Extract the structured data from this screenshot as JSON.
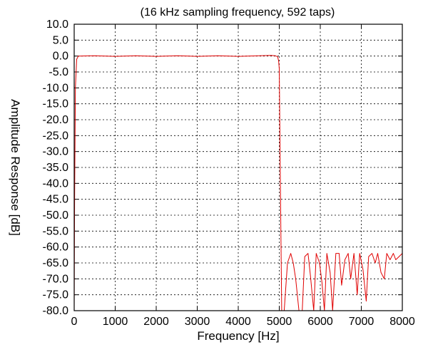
{
  "chart_data": {
    "type": "line",
    "title": "(16 kHz sampling frequency, 592 taps)",
    "xlabel": "Frequency [Hz]",
    "ylabel": "Amplitude Response [dB]",
    "xlim": [
      0,
      8000
    ],
    "ylim": [
      -80,
      10
    ],
    "xticks": [
      0,
      1000,
      2000,
      3000,
      4000,
      5000,
      6000,
      7000,
      8000
    ],
    "yticks": [
      10,
      5,
      0,
      -5,
      -10,
      -15,
      -20,
      -25,
      -30,
      -35,
      -40,
      -45,
      -50,
      -55,
      -60,
      -65,
      -70,
      -75,
      -80
    ],
    "xtick_labels": [
      "0",
      "1000",
      "2000",
      "3000",
      "4000",
      "5000",
      "6000",
      "7000",
      "8000"
    ],
    "ytick_labels": [
      "10.0",
      "5.0",
      "0.0",
      "-5.0",
      "-10.0",
      "-15.0",
      "-20.0",
      "-25.0",
      "-30.0",
      "-35.0",
      "-40.0",
      "-45.0",
      "-50.0",
      "-55.0",
      "-60.0",
      "-65.0",
      "-70.0",
      "-75.0",
      "-80.0"
    ],
    "grid": true,
    "series": [
      {
        "color": "#e00000",
        "x": [
          0,
          10,
          30,
          60,
          100,
          500,
          1000,
          1500,
          2000,
          2500,
          3000,
          3500,
          4000,
          4500,
          4800,
          4900,
          4960,
          4985,
          5000,
          5020,
          5060,
          5120,
          5200,
          5280,
          5340,
          5400,
          5480,
          5560,
          5620,
          5700,
          5760,
          5840,
          5900,
          5980,
          6040,
          6100,
          6160,
          6240,
          6300,
          6380,
          6460,
          6520,
          6600,
          6680,
          6740,
          6820,
          6900,
          6960,
          7040,
          7120,
          7180,
          7260,
          7340,
          7400,
          7480,
          7560,
          7620,
          7700,
          7780,
          7840,
          7920,
          8000
        ],
        "y": [
          -80,
          -45,
          -10,
          -1,
          0,
          0.1,
          -0.1,
          0.1,
          -0.1,
          0.1,
          -0.1,
          0.1,
          -0.1,
          0.1,
          0.2,
          0.1,
          -0.2,
          -1.5,
          -4,
          -30,
          -80,
          -80,
          -65,
          -62,
          -65,
          -70,
          -80,
          -80,
          -63,
          -62,
          -69,
          -80,
          -62,
          -65,
          -71,
          -80,
          -62,
          -68,
          -80,
          -62,
          -62,
          -72,
          -64,
          -62,
          -70,
          -62,
          -75,
          -62,
          -67,
          -77,
          -63,
          -62,
          -65,
          -62,
          -68,
          -70,
          -62,
          -64,
          -62,
          -64,
          -63,
          -62
        ]
      }
    ]
  }
}
